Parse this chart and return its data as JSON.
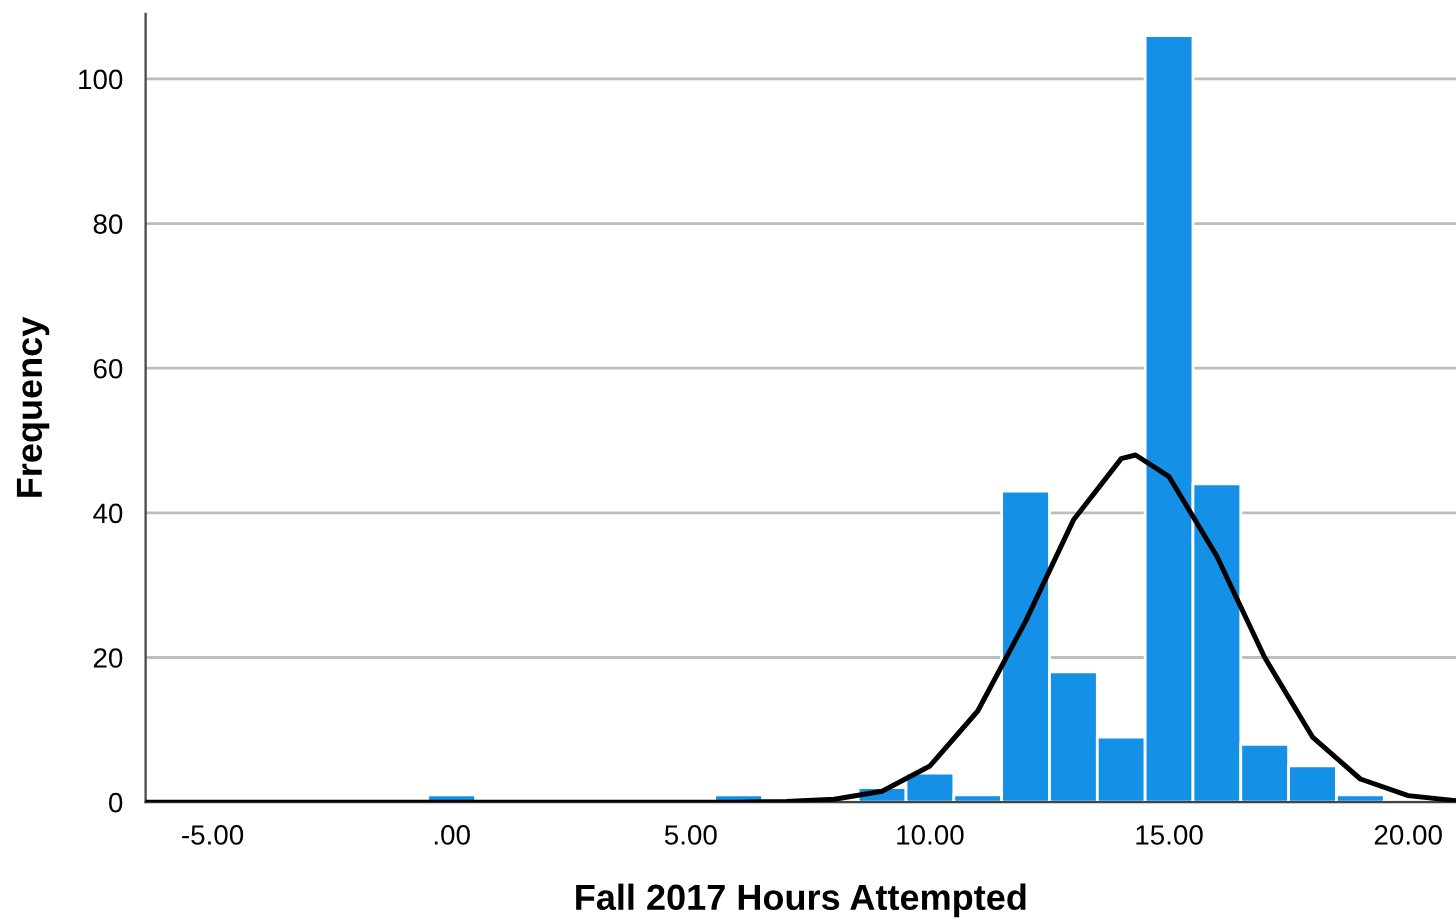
{
  "chart_data": {
    "type": "histogram",
    "xlabel": "Fall 2017 Hours Attempted",
    "ylabel": "Frequency",
    "bins": [
      -0.5,
      0.5,
      1.5,
      2.5,
      3.5,
      4.5,
      5.5,
      6.5,
      7.5,
      8.5,
      9.5,
      10.5,
      11.5,
      12.5,
      13.5,
      14.5,
      15.5,
      16.5,
      17.5,
      18.5,
      19.5
    ],
    "values": [
      1,
      0,
      0,
      0,
      0,
      0,
      1,
      0,
      0,
      2,
      4,
      1,
      43,
      18,
      9,
      106,
      44,
      8,
      5,
      1
    ],
    "color": "#1490e6",
    "series": [
      {
        "type": "line",
        "color": "#000000",
        "x": [
          -6.4,
          4,
          6,
          7,
          8,
          9,
          10,
          11,
          12,
          13,
          14,
          14.3,
          15,
          16,
          17,
          18,
          19,
          20,
          21
        ],
        "values": [
          0,
          0,
          0,
          0.1,
          0.4,
          1.5,
          5,
          12.6,
          25,
          39,
          47.5,
          48,
          45,
          34,
          20,
          9,
          3.2,
          0.9,
          0.2
        ]
      }
    ],
    "xlim": [
      -6.4,
      21
    ],
    "xticks": [
      {
        "value": -5,
        "label": "-5.00"
      },
      {
        "value": 0,
        "label": ".00"
      },
      {
        "value": 5,
        "label": "5.00"
      },
      {
        "value": 10,
        "label": "10.00"
      },
      {
        "value": 15,
        "label": "15.00"
      },
      {
        "value": 20,
        "label": "20.00"
      }
    ],
    "ylim": [
      0,
      109
    ],
    "yticks": [
      0,
      20,
      40,
      60,
      80,
      100
    ],
    "grid": "y"
  }
}
